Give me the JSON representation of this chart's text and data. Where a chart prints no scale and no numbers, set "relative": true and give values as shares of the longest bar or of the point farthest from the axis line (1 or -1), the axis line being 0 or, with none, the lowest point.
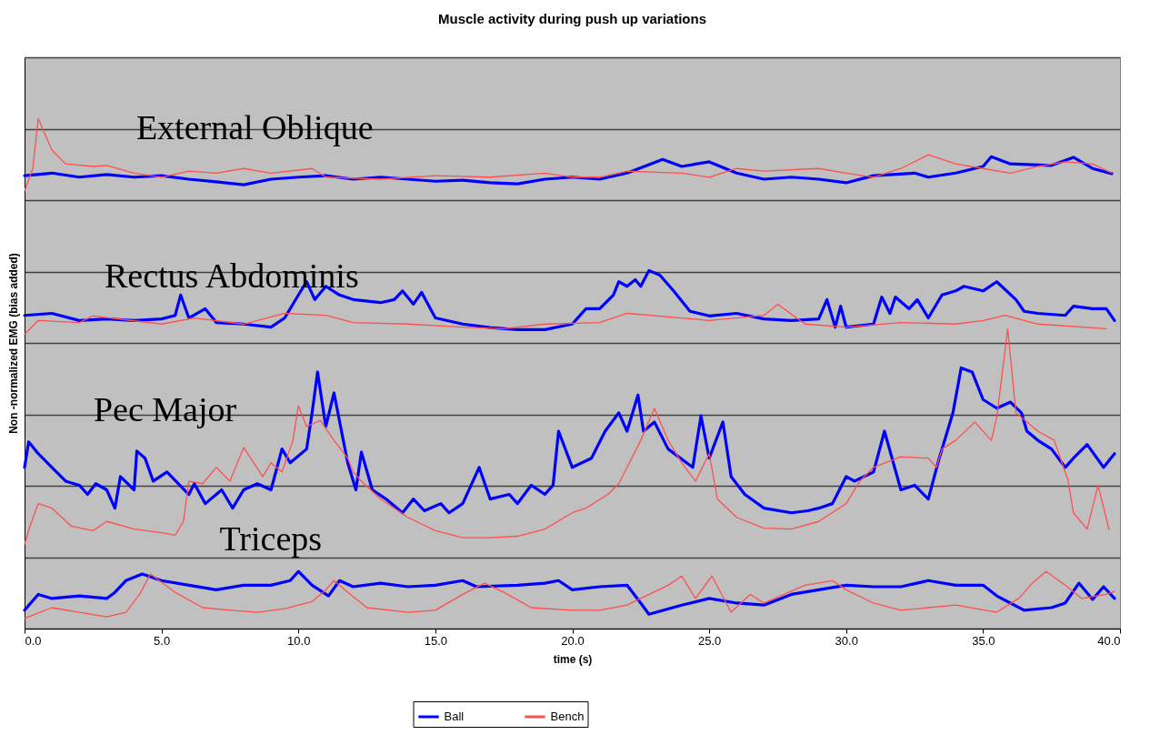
{
  "chart_data": {
    "type": "line",
    "title": "Muscle activity during push up variations",
    "xlabel": "time (s)",
    "ylabel": "Non -normalized EMG (bias added)",
    "relative": true,
    "xlim": [
      0,
      40
    ],
    "xticks": [
      {
        "value": 0,
        "label": "0.0"
      },
      {
        "value": 5,
        "label": "5.0"
      },
      {
        "value": 10,
        "label": "10.0"
      },
      {
        "value": 15,
        "label": "15.0"
      },
      {
        "value": 20,
        "label": "20.0"
      },
      {
        "value": 25,
        "label": "25.0"
      },
      {
        "value": 30,
        "label": "30.0"
      },
      {
        "value": 35,
        "label": "35.0"
      },
      {
        "value": 40,
        "label": "40.0"
      }
    ],
    "grid": "y",
    "legend": "bottom",
    "marker": "none",
    "line_style": "solid",
    "annotations": [
      "External Oblique",
      "Rectus Abdominis",
      "Pec Major",
      "Triceps"
    ],
    "series": [
      {
        "name": "Ball",
        "color": "#0000ff",
        "x": [
          0,
          1,
          2,
          3,
          4,
          5,
          6,
          7,
          8,
          9,
          10,
          11,
          12,
          13,
          14,
          15,
          16,
          17,
          18,
          19,
          20,
          21,
          22,
          23.3,
          24,
          25,
          26,
          27,
          28,
          29,
          30,
          31,
          32.5,
          33,
          34,
          35,
          35.3,
          36,
          37.5,
          38.3,
          39,
          39.7
        ],
        "values": [
          0.888,
          0.893,
          0.885,
          0.89,
          0.885,
          0.888,
          0.881,
          0.876,
          0.87,
          0.881,
          0.885,
          0.888,
          0.881,
          0.885,
          0.881,
          0.877,
          0.879,
          0.874,
          0.872,
          0.881,
          0.885,
          0.881,
          0.893,
          0.92,
          0.906,
          0.915,
          0.893,
          0.881,
          0.885,
          0.881,
          0.874,
          0.888,
          0.893,
          0.885,
          0.893,
          0.906,
          0.925,
          0.911,
          0.908,
          0.924,
          0.902,
          0.892
        ]
      },
      {
        "name": "Bench",
        "color": "#ff5050",
        "x": [
          0,
          0.3,
          0.5,
          1,
          1.5,
          2.5,
          3,
          4,
          5,
          6,
          7,
          8,
          9,
          10.5,
          11,
          13,
          15,
          17,
          19,
          20,
          21,
          22,
          24,
          25,
          26,
          27,
          29,
          30,
          31,
          32,
          33,
          34,
          35,
          36,
          37,
          38,
          39,
          39.7
        ],
        "values": [
          0.858,
          0.902,
          1.0,
          0.938,
          0.911,
          0.906,
          0.908,
          0.893,
          0.885,
          0.897,
          0.893,
          0.902,
          0.893,
          0.902,
          0.885,
          0.881,
          0.888,
          0.885,
          0.893,
          0.885,
          0.885,
          0.897,
          0.893,
          0.885,
          0.902,
          0.897,
          0.902,
          0.893,
          0.885,
          0.902,
          0.929,
          0.911,
          0.902,
          0.893,
          0.906,
          0.915,
          0.911,
          0.893
        ]
      },
      {
        "color": "#0000ff",
        "x": [
          0,
          1,
          2,
          3,
          4,
          5,
          5.5,
          5.7,
          6,
          6.6,
          7,
          8,
          9,
          9.5,
          10,
          10.3,
          10.6,
          11,
          11.5,
          12,
          13,
          13.5,
          13.8,
          14.2,
          14.5,
          15,
          16,
          17,
          18,
          19,
          20,
          20.5,
          21,
          21.5,
          21.7,
          22,
          22.3,
          22.5,
          22.8,
          23.2,
          23.7,
          24.3,
          25,
          26,
          27,
          28,
          29,
          29.3,
          29.6,
          29.8,
          30,
          31,
          31.3,
          31.6,
          31.8,
          32.3,
          32.6,
          33,
          33.5,
          34,
          34.3,
          35,
          35.5,
          36.2,
          36.5,
          37,
          38,
          38.3,
          39,
          39.5,
          39.8
        ],
        "values": [
          0.614,
          0.618,
          0.604,
          0.607,
          0.604,
          0.607,
          0.614,
          0.654,
          0.609,
          0.627,
          0.6,
          0.597,
          0.591,
          0.609,
          0.654,
          0.68,
          0.645,
          0.671,
          0.654,
          0.645,
          0.639,
          0.645,
          0.662,
          0.636,
          0.659,
          0.609,
          0.597,
          0.59,
          0.586,
          0.586,
          0.597,
          0.627,
          0.627,
          0.654,
          0.68,
          0.671,
          0.684,
          0.671,
          0.702,
          0.693,
          0.662,
          0.622,
          0.613,
          0.618,
          0.607,
          0.604,
          0.607,
          0.645,
          0.591,
          0.632,
          0.591,
          0.597,
          0.65,
          0.618,
          0.65,
          0.627,
          0.645,
          0.609,
          0.654,
          0.662,
          0.671,
          0.662,
          0.68,
          0.645,
          0.622,
          0.618,
          0.614,
          0.632,
          0.627,
          0.627,
          0.604
        ]
      },
      {
        "color": "#ff5050",
        "x": [
          0,
          0.5,
          2,
          2.5,
          5,
          6.2,
          8,
          9.5,
          11,
          12,
          14,
          16,
          17.5,
          19,
          21,
          22,
          24,
          25,
          27,
          27.5,
          28.5,
          30,
          32,
          34,
          35,
          35.8,
          37,
          39.5
        ],
        "values": [
          0.577,
          0.604,
          0.6,
          0.613,
          0.597,
          0.609,
          0.597,
          0.618,
          0.614,
          0.6,
          0.597,
          0.591,
          0.588,
          0.597,
          0.6,
          0.618,
          0.609,
          0.604,
          0.614,
          0.636,
          0.597,
          0.591,
          0.6,
          0.597,
          0.604,
          0.614,
          0.597,
          0.588
        ]
      },
      {
        "color": "#0000ff",
        "x": [
          0,
          0.15,
          0.5,
          1,
          1.5,
          2,
          2.3,
          2.6,
          3,
          3.3,
          3.5,
          4,
          4.1,
          4.4,
          4.7,
          5.2,
          6,
          6.2,
          6.6,
          7.2,
          7.6,
          8,
          8.5,
          9,
          9.4,
          9.7,
          10.3,
          10.5,
          10.7,
          11,
          11.3,
          11.8,
          12.1,
          12.3,
          12.7,
          13.2,
          13.8,
          14.2,
          14.6,
          15.2,
          15.5,
          16,
          16.6,
          17,
          17.7,
          18,
          18.5,
          19,
          19.3,
          19.5,
          20,
          20.7,
          21.2,
          21.7,
          22,
          22.4,
          22.6,
          23,
          23.5,
          24.4,
          24.7,
          25,
          25.5,
          25.8,
          26.3,
          27,
          28,
          28.6,
          29,
          29.5,
          30,
          30.3,
          31,
          31.4,
          32,
          32.5,
          33,
          33.4,
          33.9,
          34.2,
          34.6,
          35,
          35.5,
          36,
          36.4,
          36.6,
          37,
          37.5,
          38,
          38.3,
          38.8,
          39.4,
          39.8
        ],
        "values": [
          0.316,
          0.366,
          0.343,
          0.316,
          0.289,
          0.281,
          0.263,
          0.284,
          0.272,
          0.236,
          0.298,
          0.272,
          0.348,
          0.334,
          0.289,
          0.307,
          0.263,
          0.284,
          0.245,
          0.272,
          0.236,
          0.272,
          0.284,
          0.272,
          0.352,
          0.325,
          0.352,
          0.423,
          0.503,
          0.396,
          0.462,
          0.325,
          0.272,
          0.346,
          0.272,
          0.254,
          0.227,
          0.254,
          0.231,
          0.245,
          0.227,
          0.245,
          0.316,
          0.254,
          0.263,
          0.245,
          0.281,
          0.263,
          0.281,
          0.387,
          0.316,
          0.334,
          0.387,
          0.423,
          0.387,
          0.458,
          0.387,
          0.405,
          0.352,
          0.316,
          0.417,
          0.334,
          0.405,
          0.298,
          0.263,
          0.236,
          0.227,
          0.231,
          0.236,
          0.245,
          0.298,
          0.289,
          0.307,
          0.387,
          0.272,
          0.281,
          0.254,
          0.334,
          0.423,
          0.511,
          0.503,
          0.449,
          0.432,
          0.444,
          0.423,
          0.387,
          0.369,
          0.352,
          0.316,
          0.334,
          0.361,
          0.316,
          0.343
        ]
      },
      {
        "color": "#ff5050",
        "x": [
          0,
          0.2,
          0.5,
          1,
          1.7,
          2.5,
          3,
          4,
          5,
          5.5,
          5.8,
          6,
          6.5,
          7,
          7.5,
          8,
          8.7,
          9,
          9.4,
          9.8,
          10,
          10.3,
          10.8,
          11.3,
          11.8,
          12,
          12.3,
          13,
          14,
          15,
          16,
          17,
          18,
          19,
          20,
          20.5,
          21.3,
          21.7,
          22,
          22.5,
          23,
          23.5,
          24,
          24.5,
          25,
          25.3,
          26,
          27,
          28,
          29,
          30,
          30.5,
          31,
          32,
          33,
          33.3,
          33.5,
          34,
          34.7,
          35.3,
          35.5,
          35.9,
          36.2,
          37,
          37.6,
          38.1,
          38.3,
          38.8,
          39.2,
          39.6
        ],
        "values": [
          0.165,
          0.201,
          0.245,
          0.236,
          0.201,
          0.192,
          0.21,
          0.195,
          0.188,
          0.183,
          0.21,
          0.289,
          0.284,
          0.316,
          0.289,
          0.355,
          0.298,
          0.325,
          0.307,
          0.369,
          0.437,
          0.396,
          0.408,
          0.369,
          0.334,
          0.307,
          0.289,
          0.254,
          0.218,
          0.192,
          0.178,
          0.178,
          0.181,
          0.195,
          0.227,
          0.236,
          0.263,
          0.284,
          0.316,
          0.369,
          0.432,
          0.369,
          0.325,
          0.289,
          0.343,
          0.254,
          0.218,
          0.197,
          0.195,
          0.21,
          0.245,
          0.289,
          0.316,
          0.337,
          0.334,
          0.316,
          0.352,
          0.369,
          0.405,
          0.369,
          0.414,
          0.588,
          0.423,
          0.387,
          0.369,
          0.291,
          0.227,
          0.195,
          0.281,
          0.194
        ]
      },
      {
        "color": "#0000ff",
        "x": [
          0,
          0.5,
          1,
          2,
          3,
          3.3,
          3.7,
          4.3,
          5,
          6,
          7,
          8,
          9,
          9.7,
          10,
          10.5,
          11.1,
          11.5,
          12,
          13,
          14,
          15,
          16,
          16.5,
          18,
          19,
          19.5,
          20,
          21,
          22,
          22.5,
          22.8,
          24,
          25,
          26,
          27,
          28,
          29,
          30,
          31,
          32,
          33,
          34,
          35,
          35.5,
          36,
          36.5,
          37.5,
          38,
          38.5,
          39,
          39.4,
          39.8
        ],
        "values": [
          0.036,
          0.067,
          0.059,
          0.064,
          0.059,
          0.071,
          0.094,
          0.107,
          0.094,
          0.085,
          0.076,
          0.085,
          0.085,
          0.094,
          0.112,
          0.085,
          0.064,
          0.094,
          0.082,
          0.089,
          0.082,
          0.085,
          0.094,
          0.082,
          0.085,
          0.089,
          0.094,
          0.076,
          0.082,
          0.085,
          0.05,
          0.028,
          0.046,
          0.059,
          0.05,
          0.046,
          0.067,
          0.076,
          0.085,
          0.082,
          0.082,
          0.094,
          0.085,
          0.085,
          0.064,
          0.05,
          0.036,
          0.041,
          0.05,
          0.089,
          0.057,
          0.082,
          0.059
        ]
      },
      {
        "color": "#ff5050",
        "x": [
          0,
          1,
          2,
          3,
          3.7,
          4.2,
          4.6,
          5.5,
          6.5,
          7.5,
          8.5,
          9.5,
          10.5,
          11,
          11.3,
          11.7,
          12.5,
          14,
          15,
          16,
          16.8,
          17.5,
          18.5,
          20,
          21,
          22,
          23.5,
          24,
          24.5,
          25.1,
          25.8,
          26.5,
          27,
          28.5,
          29.5,
          30,
          31,
          32,
          34,
          35.5,
          36.3,
          36.8,
          37.3,
          38,
          38.6,
          39.5,
          39.8
        ],
        "values": [
          0.02,
          0.041,
          0.032,
          0.023,
          0.032,
          0.067,
          0.107,
          0.071,
          0.041,
          0.036,
          0.032,
          0.039,
          0.053,
          0.076,
          0.094,
          0.076,
          0.041,
          0.032,
          0.036,
          0.067,
          0.089,
          0.071,
          0.041,
          0.036,
          0.036,
          0.046,
          0.085,
          0.103,
          0.059,
          0.103,
          0.032,
          0.067,
          0.05,
          0.085,
          0.094,
          0.076,
          0.05,
          0.036,
          0.046,
          0.032,
          0.059,
          0.089,
          0.112,
          0.085,
          0.059,
          0.067,
          0.073
        ]
      }
    ]
  }
}
